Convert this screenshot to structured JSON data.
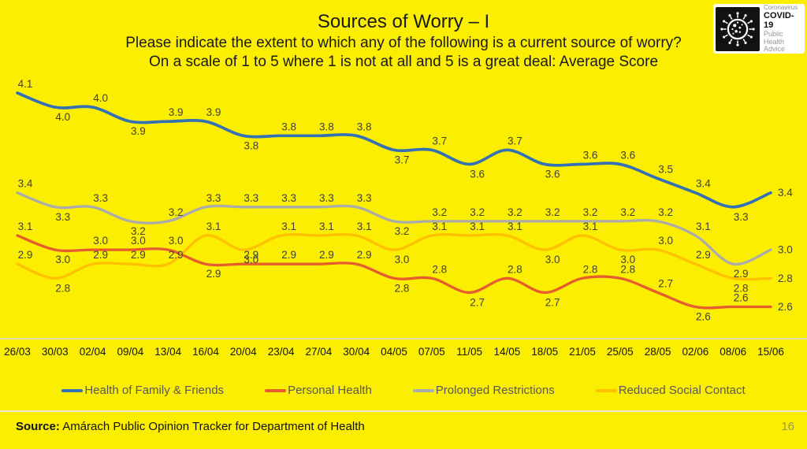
{
  "slide": {
    "title": "Sources of Worry – I",
    "subtitle_line1": "Please indicate the extent to which any of the following is a current source of worry?",
    "subtitle_line2": "On a scale of 1 to 5 where 1 is not at all and 5 is a great deal:  Average Score",
    "footer": {
      "source_label": "Source:",
      "source_text": " Amárach Public Opinion Tracker for Department of Health",
      "page_number": "16"
    }
  },
  "logo": {
    "icon": "coronavirus-icon",
    "line1": "Coronavirus",
    "line2": "COVID-19",
    "line3": "Public Health",
    "line4": "Advice"
  },
  "colors": {
    "background": "#FBEE00",
    "title_text": "#1A1A1A",
    "data_label": "#404040",
    "axis_label": "#151515",
    "axis_line": "#D9D9D9",
    "legend_text": "#595959",
    "page_number": "#98985E"
  },
  "chart_data": {
    "type": "line",
    "title": "Sources of Worry – I (Average Score on a 1–5 scale)",
    "categories": [
      "26/03",
      "30/03",
      "02/04",
      "09/04",
      "13/04",
      "16/04",
      "20/04",
      "23/04",
      "27/04",
      "30/04",
      "04/05",
      "07/05",
      "11/05",
      "14/05",
      "18/05",
      "21/05",
      "25/05",
      "28/05",
      "02/06",
      "08/06",
      "15/06"
    ],
    "series": [
      {
        "name": "Health of Family & Friends",
        "color": "#3470B4",
        "values": [
          4.1,
          4.0,
          4.0,
          3.9,
          3.9,
          3.9,
          3.8,
          3.8,
          3.8,
          3.8,
          3.7,
          3.7,
          3.6,
          3.7,
          3.6,
          3.6,
          3.6,
          3.5,
          3.4,
          3.3,
          3.4
        ]
      },
      {
        "name": "Personal Health",
        "color": "#E65C2E",
        "values": [
          3.1,
          3.0,
          3.0,
          3.0,
          3.0,
          2.9,
          2.9,
          2.9,
          2.9,
          2.9,
          2.8,
          2.8,
          2.7,
          2.8,
          2.7,
          2.8,
          2.8,
          2.7,
          2.6,
          2.6,
          2.6
        ]
      },
      {
        "name": "Prolonged Restrictions",
        "color": "#ABABAB",
        "values": [
          3.4,
          3.3,
          3.3,
          3.2,
          3.2,
          3.3,
          3.3,
          3.3,
          3.3,
          3.3,
          3.2,
          3.2,
          3.2,
          3.2,
          3.2,
          3.2,
          3.2,
          3.2,
          3.1,
          2.9,
          3.0
        ]
      },
      {
        "name": "Reduced Social Contact",
        "color": "#FFC000",
        "values": [
          2.9,
          2.8,
          2.9,
          2.9,
          2.9,
          3.1,
          3.0,
          3.1,
          3.1,
          3.1,
          3.0,
          3.1,
          3.1,
          3.1,
          3.0,
          3.1,
          3.0,
          3.0,
          2.9,
          2.8,
          2.8
        ]
      }
    ],
    "ylim": [
      2.4,
      4.2
    ],
    "grid": false,
    "smoothed": true,
    "data_labels": true,
    "legend_position": "bottom"
  }
}
